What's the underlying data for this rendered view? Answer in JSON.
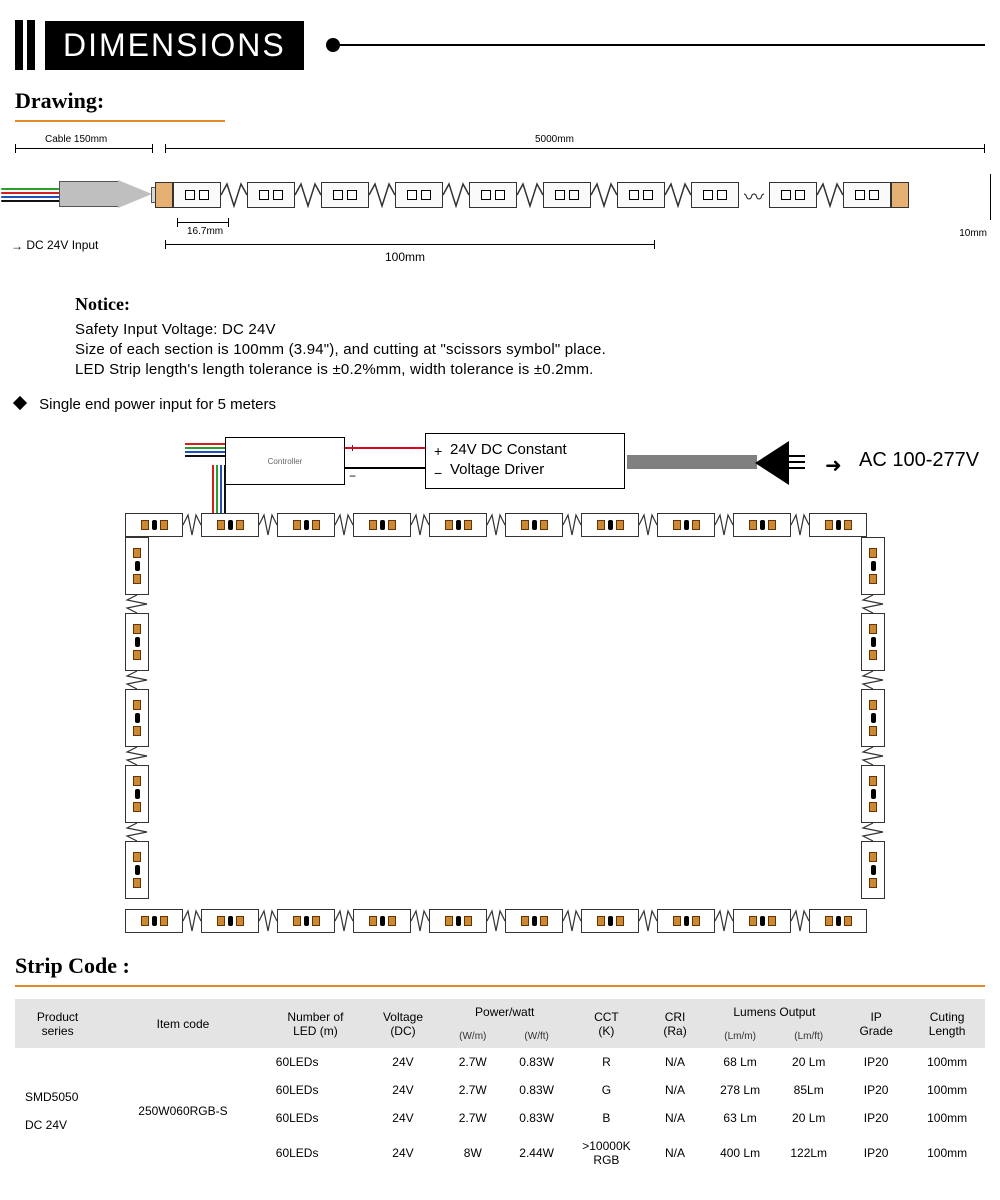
{
  "header": {
    "title": "DIMENSIONS"
  },
  "drawing": {
    "label": "Drawing:",
    "cable_len": "Cable 150mm",
    "total_len": "5000mm",
    "section_dim": "16.7mm",
    "group_dim": "100mm",
    "width_dim": "10mm",
    "input_label": "DC 24V Input",
    "wire_colors": [
      "#2aa02a",
      "#d02020",
      "#2050c0",
      "#111111"
    ]
  },
  "notice": {
    "heading": "Notice:",
    "line1": "Safety Input Voltage: DC 24V",
    "line2": "Size of each section is 100mm (3.94\"),  and cutting at \"scissors symbol\" place.",
    "line3": "LED Strip length's length tolerance is ±0.2%mm, width tolerance is ±0.2mm."
  },
  "single_end": "Single end power input for 5 meters",
  "wiring": {
    "controller": "Controller",
    "driver_line1": "24V DC Constant",
    "driver_line2": "Voltage Driver",
    "ac_label": "AC 100-277V",
    "ctrl_wire_colors": [
      "#d02020",
      "#2aa02a",
      "#2050c0",
      "#111111"
    ]
  },
  "table": {
    "title": "Strip Code :",
    "columns": {
      "series": "Product\nseries",
      "item": "Item code",
      "leds": "Number of\nLED (m)",
      "voltage": "Voltage\n(DC)",
      "power": "Power/watt",
      "power_wm": "(W/m)",
      "power_wft": "(W/ft)",
      "cct": "CCT\n(K)",
      "cri": "CRI\n(Ra)",
      "lumens": "Lumens Output",
      "lm_m": "(Lm/m)",
      "lm_ft": "(Lm/ft)",
      "ip": "IP\nGrade",
      "cut": "Cuting\nLength"
    },
    "series_label": "SMD5050\n\nDC 24V",
    "item_code": "250W060RGB-S",
    "rows": [
      {
        "leds": "60LEDs",
        "v": "24V",
        "wm": "2.7W",
        "wft": "0.83W",
        "cct": "R",
        "cri": "N/A",
        "lmm": "68 Lm",
        "lmft": "20 Lm",
        "ip": "IP20",
        "cut": "100mm"
      },
      {
        "leds": "60LEDs",
        "v": "24V",
        "wm": "2.7W",
        "wft": "0.83W",
        "cct": "G",
        "cri": "N/A",
        "lmm": "278 Lm",
        "lmft": "85Lm",
        "ip": "IP20",
        "cut": "100mm"
      },
      {
        "leds": "60LEDs",
        "v": "24V",
        "wm": "2.7W",
        "wft": "0.83W",
        "cct": "B",
        "cri": "N/A",
        "lmm": "63 Lm",
        "lmft": "20 Lm",
        "ip": "IP20",
        "cut": "100mm"
      },
      {
        "leds": "60LEDs",
        "v": "24V",
        "wm": "8W",
        "wft": "2.44W",
        "cct": ">10000K\nRGB",
        "cri": "N/A",
        "lmm": "400 Lm",
        "lmft": "122Lm",
        "ip": "IP20",
        "cut": "100mm"
      }
    ]
  },
  "style": {
    "accent": "#e08a2a",
    "header_bg": "#e4e4e4"
  }
}
